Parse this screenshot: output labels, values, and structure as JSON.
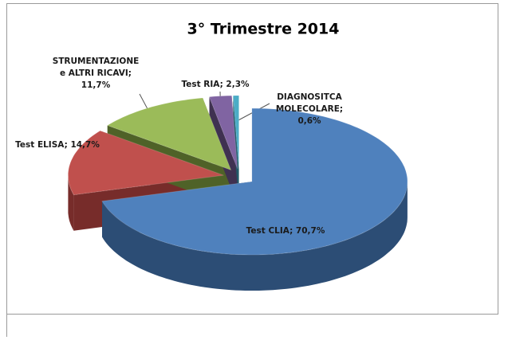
{
  "chart_data": {
    "type": "pie3d",
    "title": "3° Trimestre 2014",
    "values": [
      70.7,
      14.7,
      11.7,
      2.3,
      0.6
    ],
    "value_labels": [
      [
        "Test CLIA; 70,7%"
      ],
      [
        "Test ELISA; 14,7%"
      ],
      [
        "STRUMENTAZIONE",
        "e ALTRI RICAVI;",
        "11,7%"
      ],
      [
        "Test RIA; 2,3%"
      ],
      [
        "DIAGNOSITCA",
        "MOLECOLARE;",
        "0,6%"
      ]
    ],
    "colors": [
      "#4f81bd",
      "#c0504d",
      "#9bbb59",
      "#8064a2",
      "#4bacc6"
    ],
    "side_colors": [
      "#2c4d75",
      "#772c2a",
      "#4f6228",
      "#3f3151",
      "#215968"
    ]
  }
}
